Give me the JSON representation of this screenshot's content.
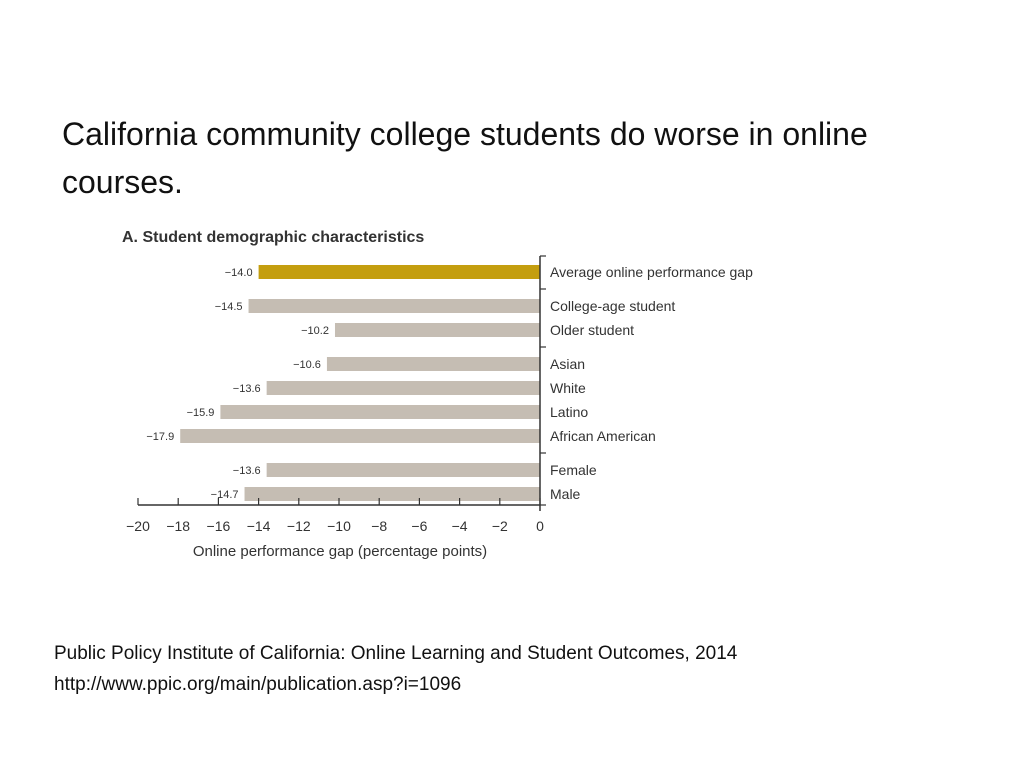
{
  "slide": {
    "title": "California community college students do worse in online courses.",
    "source_line1": "Public Policy Institute of California: Online Learning and Student Outcomes, 2014",
    "source_line2": "http://www.ppic.org/main/publication.asp?i=1096"
  },
  "chart_data": {
    "type": "bar",
    "orientation": "horizontal",
    "title": "A. Student demographic characteristics",
    "xlabel": "Online performance gap (percentage points)",
    "ylabel": "",
    "xlim": [
      -20,
      0
    ],
    "xticks": [
      -20,
      -18,
      -16,
      -14,
      -12,
      -10,
      -8,
      -6,
      -4,
      -2,
      0
    ],
    "categories": [
      "Average online performance gap",
      "College-age student",
      "Older student",
      "Asian",
      "White",
      "Latino",
      "African American",
      "Female",
      "Male"
    ],
    "values": [
      -14.0,
      -14.5,
      -10.2,
      -10.6,
      -13.6,
      -15.9,
      -17.9,
      -13.6,
      -14.7
    ],
    "value_labels": [
      "−14.0",
      "−14.5",
      "−10.2",
      "−10.6",
      "−13.6",
      "−15.9",
      "−17.9",
      "−13.6",
      "−14.7"
    ],
    "tick_labels": [
      "−20",
      "−18",
      "−16",
      "−14",
      "−12",
      "−10",
      "−8",
      "−6",
      "−4",
      "−2",
      "0"
    ],
    "groups": [
      [
        0
      ],
      [
        1,
        2
      ],
      [
        3,
        4,
        5,
        6
      ],
      [
        7,
        8
      ]
    ],
    "highlight_index": 0,
    "colors": {
      "highlight": "#c49e0f",
      "bar": "#c5bdb3",
      "axis": "#333333"
    },
    "grid": false,
    "legend": "none"
  }
}
